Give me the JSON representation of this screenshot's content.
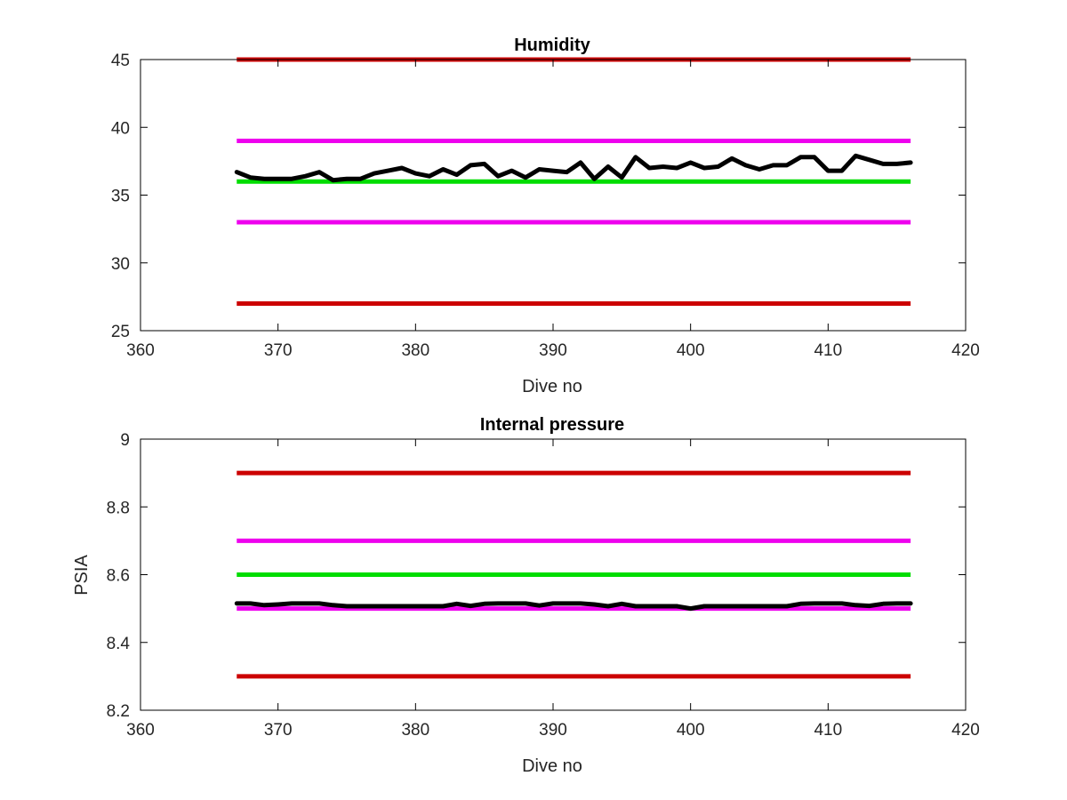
{
  "chart_data": [
    {
      "type": "line",
      "title": "Humidity",
      "xlabel": "Dive no",
      "ylabel": "",
      "xlim": [
        360,
        420
      ],
      "ylim": [
        25,
        45
      ],
      "xticks": [
        "360",
        "370",
        "380",
        "390",
        "400",
        "410",
        "420"
      ],
      "yticks": [
        "25",
        "30",
        "35",
        "40",
        "45"
      ],
      "grid": false,
      "reference_lines": [
        {
          "y": 45,
          "x": [
            367,
            416
          ],
          "color": "#cc0000"
        },
        {
          "y": 39,
          "x": [
            367,
            416
          ],
          "color": "#ee00ee"
        },
        {
          "y": 36,
          "x": [
            367,
            416
          ],
          "color": "#00dd00"
        },
        {
          "y": 33,
          "x": [
            367,
            416
          ],
          "color": "#ee00ee"
        },
        {
          "y": 27,
          "x": [
            367,
            416
          ],
          "color": "#cc0000"
        }
      ],
      "series": [
        {
          "color": "#000000",
          "x": [
            367,
            368,
            369,
            370,
            371,
            372,
            373,
            374,
            375,
            376,
            377,
            378,
            379,
            380,
            381,
            382,
            383,
            384,
            385,
            386,
            387,
            388,
            389,
            390,
            391,
            392,
            393,
            394,
            395,
            396,
            397,
            398,
            399,
            400,
            401,
            402,
            403,
            404,
            405,
            406,
            407,
            408,
            409,
            410,
            411,
            412,
            413,
            414,
            415,
            416
          ],
          "values": [
            36.7,
            36.3,
            36.2,
            36.2,
            36.2,
            36.4,
            36.7,
            36.1,
            36.2,
            36.2,
            36.6,
            36.8,
            37.0,
            36.6,
            36.4,
            36.9,
            36.5,
            37.2,
            37.3,
            36.4,
            36.8,
            36.3,
            36.9,
            36.8,
            36.7,
            37.4,
            36.2,
            37.1,
            36.3,
            37.8,
            37.0,
            37.1,
            37.0,
            37.4,
            37.0,
            37.1,
            37.7,
            37.2,
            36.9,
            37.2,
            37.2,
            37.8,
            37.8,
            36.8,
            36.8,
            37.9,
            37.6,
            37.3,
            37.3,
            37.4
          ]
        }
      ]
    },
    {
      "type": "line",
      "title": "Internal pressure",
      "xlabel": "Dive no",
      "ylabel": "PSIA",
      "xlim": [
        360,
        420
      ],
      "ylim": [
        8.2,
        9
      ],
      "xticks": [
        "360",
        "370",
        "380",
        "390",
        "400",
        "410",
        "420"
      ],
      "yticks": [
        "8.2",
        "8.4",
        "8.6",
        "8.8",
        "9"
      ],
      "grid": false,
      "reference_lines": [
        {
          "y": 8.9,
          "x": [
            367,
            416
          ],
          "color": "#cc0000"
        },
        {
          "y": 8.7,
          "x": [
            367,
            416
          ],
          "color": "#ee00ee"
        },
        {
          "y": 8.6,
          "x": [
            367,
            416
          ],
          "color": "#00dd00"
        },
        {
          "y": 8.5,
          "x": [
            367,
            416
          ],
          "color": "#ee00ee"
        },
        {
          "y": 8.3,
          "x": [
            367,
            416
          ],
          "color": "#cc0000"
        }
      ],
      "series": [
        {
          "color": "#000000",
          "x": [
            367,
            368,
            369,
            370,
            371,
            372,
            373,
            374,
            375,
            376,
            377,
            378,
            379,
            380,
            381,
            382,
            383,
            384,
            385,
            386,
            387,
            388,
            389,
            390,
            391,
            392,
            393,
            394,
            395,
            396,
            397,
            398,
            399,
            400,
            401,
            402,
            403,
            404,
            405,
            406,
            407,
            408,
            409,
            410,
            411,
            412,
            413,
            414,
            415,
            416
          ],
          "values": [
            8.515,
            8.515,
            8.51,
            8.512,
            8.515,
            8.515,
            8.515,
            8.51,
            8.507,
            8.507,
            8.507,
            8.507,
            8.507,
            8.507,
            8.507,
            8.507,
            8.514,
            8.508,
            8.514,
            8.515,
            8.515,
            8.515,
            8.509,
            8.515,
            8.515,
            8.515,
            8.512,
            8.507,
            8.514,
            8.507,
            8.507,
            8.507,
            8.507,
            8.5,
            8.507,
            8.507,
            8.507,
            8.507,
            8.507,
            8.507,
            8.507,
            8.514,
            8.515,
            8.515,
            8.515,
            8.51,
            8.508,
            8.514,
            8.515,
            8.515
          ]
        }
      ]
    }
  ]
}
